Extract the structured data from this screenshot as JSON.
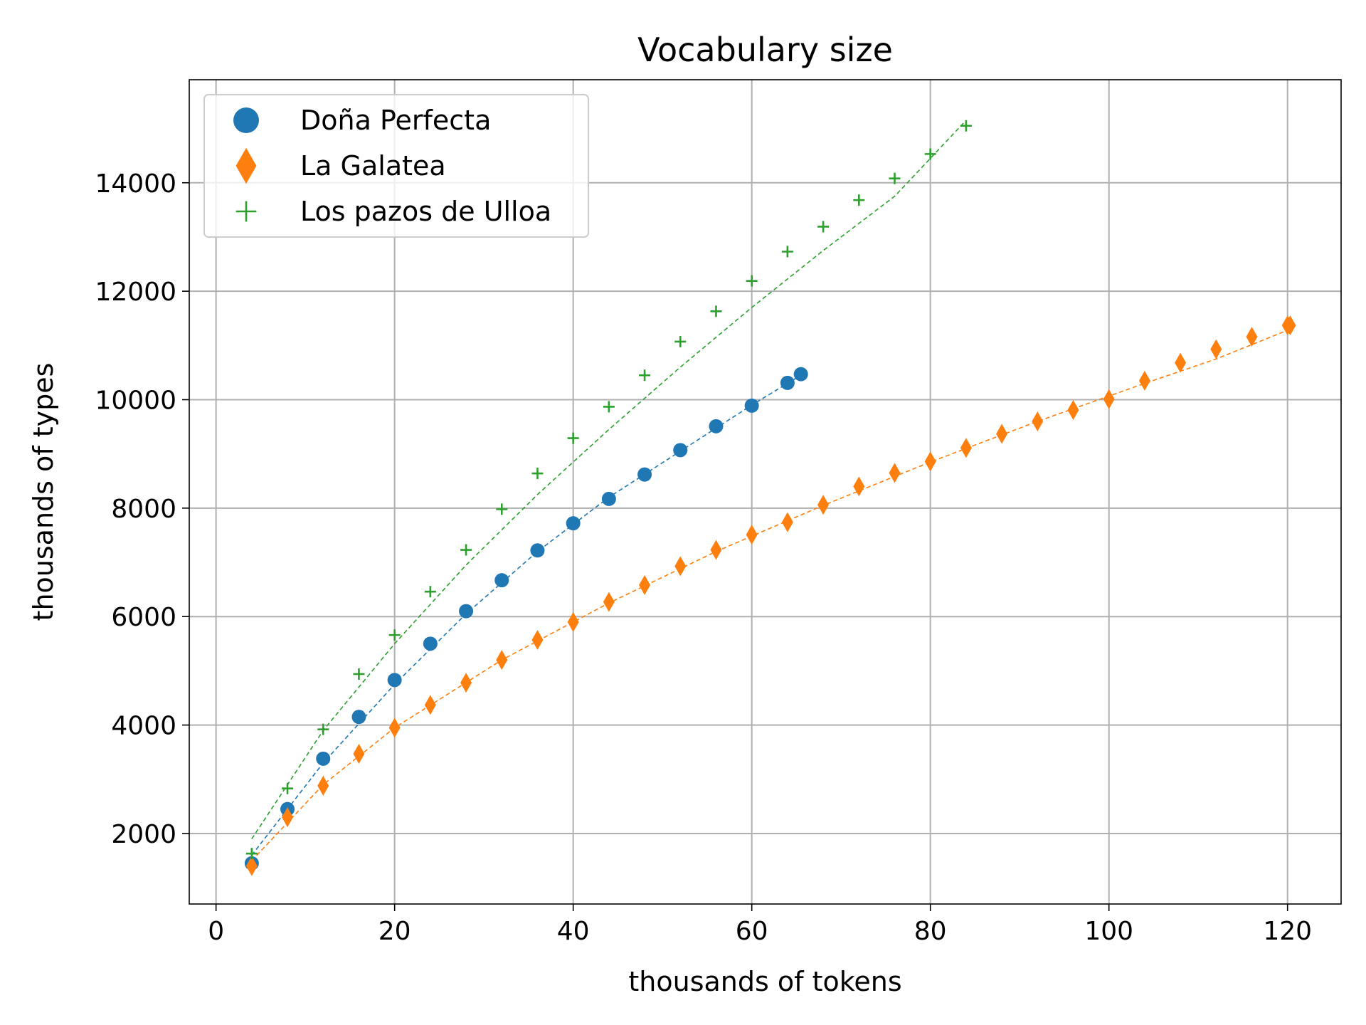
{
  "chart_data": {
    "type": "scatter",
    "title": "Vocabulary size",
    "xlabel": "thousands of tokens",
    "ylabel": "thousands of types",
    "xlim": [
      -3,
      126
    ],
    "ylim": [
      700,
      15900
    ],
    "xticks": [
      0,
      20,
      40,
      60,
      80,
      100,
      120
    ],
    "yticks": [
      2000,
      4000,
      6000,
      8000,
      10000,
      12000,
      14000
    ],
    "grid": true,
    "legend_position": "upper-left",
    "series": [
      {
        "name": "Doña Perfecta",
        "color": "#1f77b4",
        "marker": "circle",
        "x": [
          4,
          8,
          12,
          16,
          20,
          24,
          28,
          32,
          36,
          40,
          44,
          48,
          52,
          56,
          60,
          64,
          65.5
        ],
        "y": [
          1450,
          2450,
          3380,
          4150,
          4830,
          5500,
          6100,
          6670,
          7220,
          7720,
          8170,
          8620,
          9070,
          9510,
          9890,
          10310,
          10470
        ],
        "fit": [
          [
            4,
            1600
          ],
          [
            12,
            3300
          ],
          [
            20,
            4750
          ],
          [
            28,
            6050
          ],
          [
            36,
            7200
          ],
          [
            44,
            8200
          ],
          [
            52,
            9050
          ],
          [
            60,
            9900
          ],
          [
            65.5,
            10450
          ]
        ]
      },
      {
        "name": "La Galatea",
        "color": "#ff7f0e",
        "marker": "thin-diamond",
        "x": [
          4,
          8,
          12,
          16,
          20,
          24,
          28,
          32,
          36,
          40,
          44,
          48,
          52,
          56,
          60,
          64,
          68,
          72,
          76,
          80,
          84,
          88,
          92,
          96,
          100,
          104,
          108,
          112,
          116,
          120,
          120.3
        ],
        "y": [
          1400,
          2300,
          2880,
          3470,
          3950,
          4370,
          4780,
          5200,
          5570,
          5900,
          6270,
          6580,
          6930,
          7230,
          7510,
          7740,
          8060,
          8400,
          8650,
          8860,
          9110,
          9370,
          9600,
          9810,
          10010,
          10350,
          10680,
          10930,
          11160,
          11370,
          11370
        ],
        "fit": [
          [
            4,
            1500
          ],
          [
            12,
            2900
          ],
          [
            20,
            3950
          ],
          [
            32,
            5200
          ],
          [
            44,
            6250
          ],
          [
            56,
            7200
          ],
          [
            68,
            8050
          ],
          [
            80,
            8850
          ],
          [
            92,
            9600
          ],
          [
            104,
            10300
          ],
          [
            112,
            10750
          ],
          [
            120.3,
            11300
          ]
        ]
      },
      {
        "name": "Los pazos de Ulloa",
        "color": "#2ca02c",
        "marker": "plus",
        "x": [
          4,
          8,
          12,
          16,
          20,
          24,
          28,
          32,
          36,
          40,
          44,
          48,
          52,
          56,
          60,
          64,
          68,
          72,
          76,
          80,
          84
        ],
        "y": [
          1630,
          2830,
          3920,
          4940,
          5660,
          6460,
          7230,
          7980,
          8640,
          9290,
          9870,
          10450,
          11070,
          11630,
          12190,
          12730,
          13190,
          13680,
          14080,
          14530,
          15050
        ],
        "fit": [
          [
            4,
            1900
          ],
          [
            12,
            3900
          ],
          [
            20,
            5500
          ],
          [
            28,
            6950
          ],
          [
            36,
            8250
          ],
          [
            44,
            9450
          ],
          [
            52,
            10600
          ],
          [
            60,
            11700
          ],
          [
            68,
            12750
          ],
          [
            76,
            13750
          ],
          [
            84,
            15150
          ]
        ]
      }
    ]
  }
}
